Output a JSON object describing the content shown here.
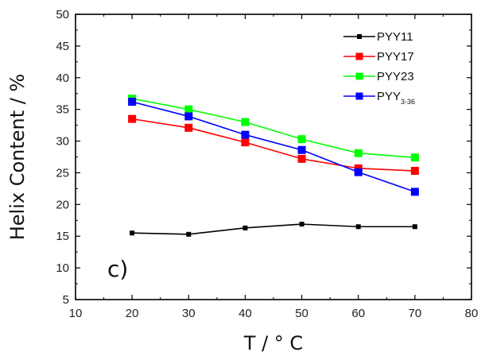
{
  "chart_data": {
    "type": "line",
    "xlabel": "T / ° C",
    "ylabel": "Helix Content / %",
    "xlim": [
      10,
      80
    ],
    "ylim": [
      5,
      50
    ],
    "xticks": [
      10,
      20,
      30,
      40,
      50,
      60,
      70,
      80
    ],
    "yticks": [
      5,
      10,
      15,
      20,
      25,
      30,
      35,
      40,
      45,
      50
    ],
    "x": [
      20,
      30,
      40,
      50,
      60,
      70
    ],
    "grid": false,
    "legend_position": "top-right",
    "annotation": "c)",
    "series": [
      {
        "name": "PYY11",
        "label_main": "PYY",
        "label_sub": "11",
        "color": "#000000",
        "values": [
          15.5,
          15.3,
          16.3,
          16.9,
          16.5,
          16.5
        ]
      },
      {
        "name": "PYY17",
        "label_main": "PYY",
        "label_sub": "17",
        "color": "#ff0000",
        "values": [
          33.5,
          32.1,
          29.8,
          27.2,
          25.7,
          25.3
        ]
      },
      {
        "name": "PYY23",
        "label_main": "PYY",
        "label_sub": "23",
        "color": "#00ff00",
        "values": [
          36.7,
          35.0,
          33.0,
          30.3,
          28.1,
          27.4
        ]
      },
      {
        "name": "PYY3-36",
        "label_main": "PYY",
        "label_sub": "3-36",
        "color": "#0000ff",
        "values": [
          36.2,
          33.9,
          31.0,
          28.6,
          25.1,
          22.0
        ]
      }
    ]
  }
}
